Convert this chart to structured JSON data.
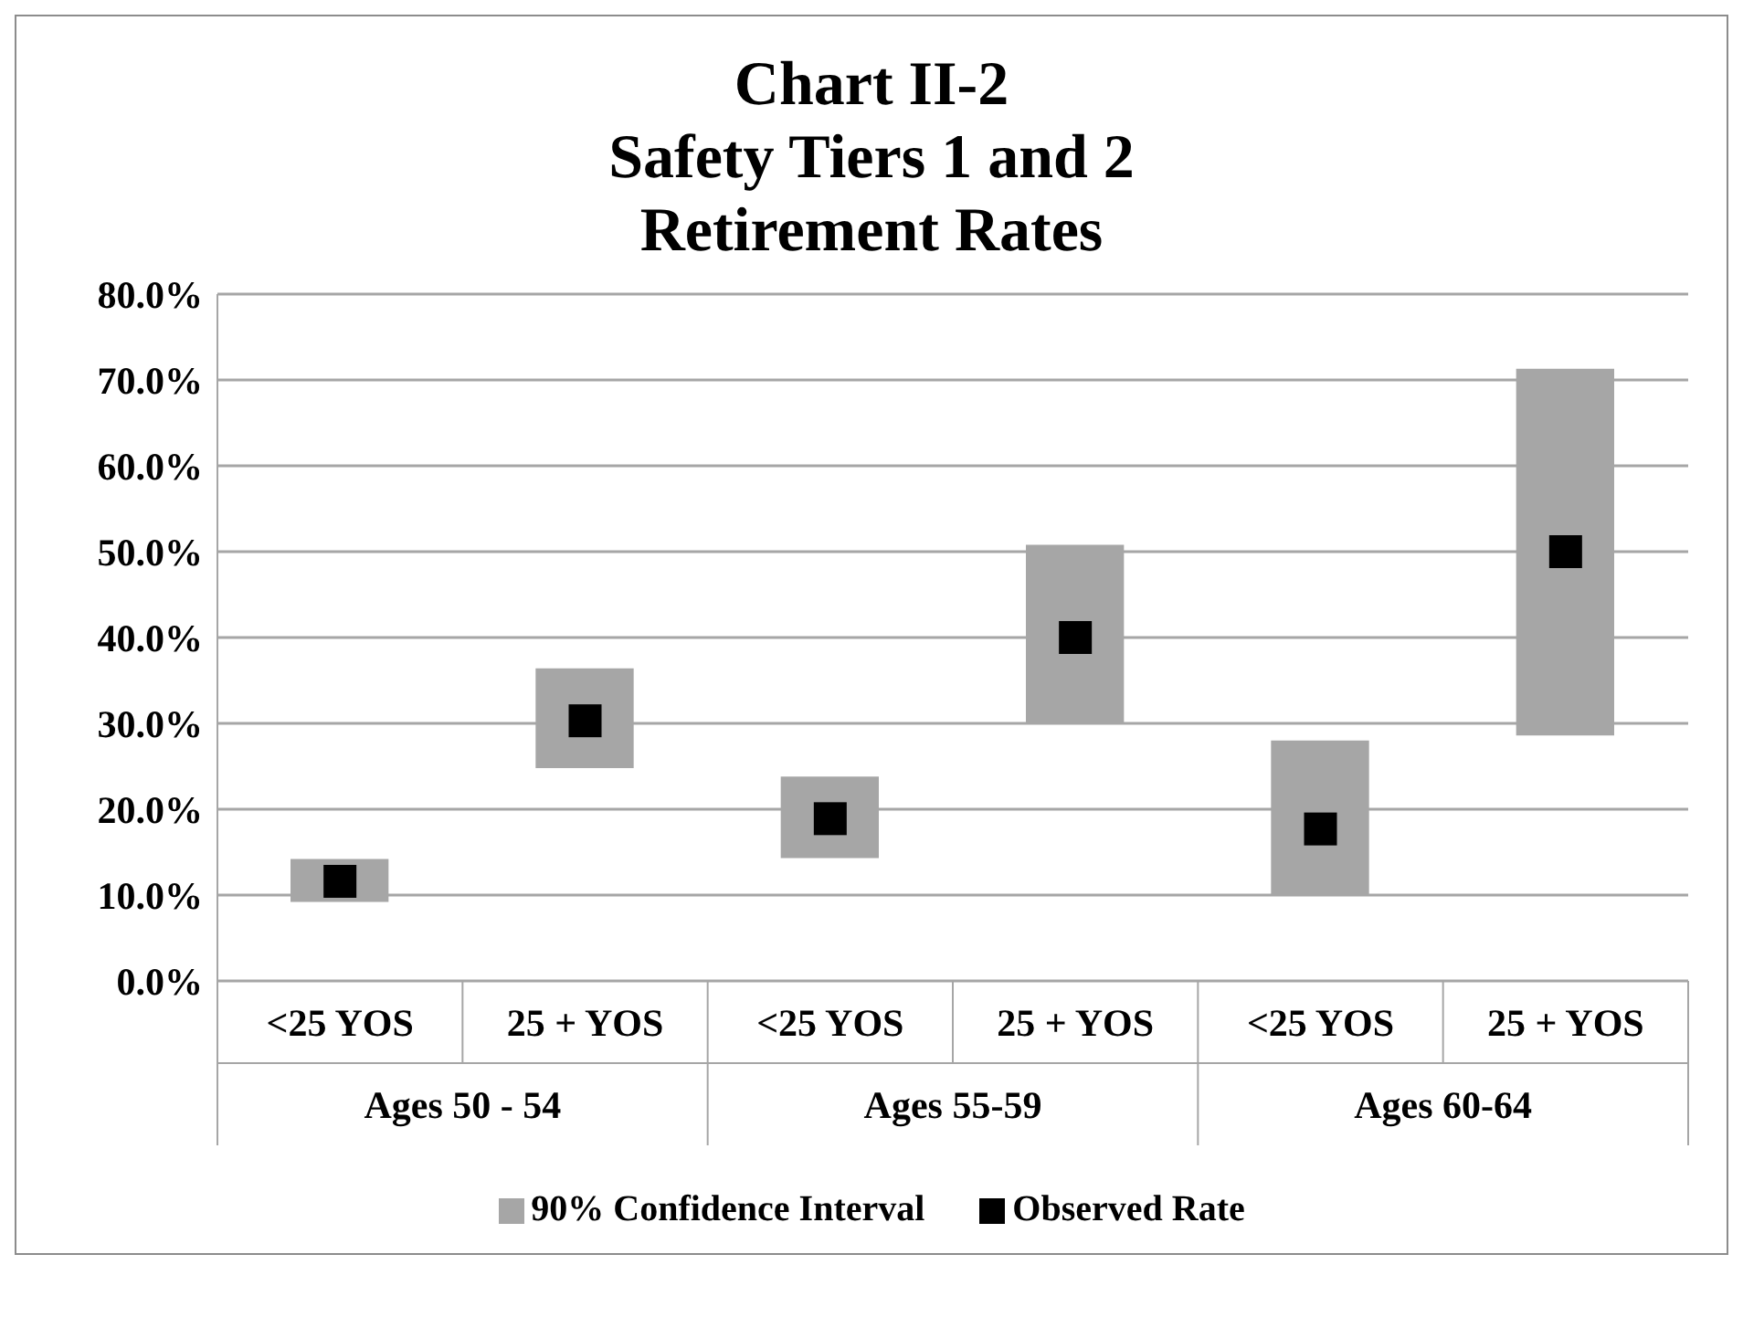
{
  "chart_data": {
    "type": "bar",
    "title": "Chart II-2\nSafety Tiers 1 and 2\nRetirement Rates",
    "categories": [
      "<25 YOS",
      "25 + YOS",
      "<25 YOS",
      "25 + YOS",
      "<25 YOS",
      "25 + YOS"
    ],
    "annotations": [
      "Ages 50 - 54",
      "Ages 55-59",
      "Ages 60-64"
    ],
    "series": [
      {
        "name": "90% Confidence Interval",
        "color": "#a6a6a6",
        "base": [
          9.2,
          24.8,
          14.3,
          29.9,
          10.0,
          28.6
        ],
        "values": [
          5.0,
          11.6,
          9.5,
          20.9,
          18.0,
          42.7
        ]
      },
      {
        "name": "Observed Rate",
        "type": "scatter",
        "color": "#000000",
        "marker": "square",
        "values": [
          11.6,
          30.3,
          18.9,
          40.0,
          17.7,
          50.0
        ]
      }
    ],
    "ylim": [
      0,
      80
    ],
    "yticks": [
      {
        "value": 0,
        "label": "0.0%"
      },
      {
        "value": 10,
        "label": "10.0%"
      },
      {
        "value": 20,
        "label": "20.0%"
      },
      {
        "value": 30,
        "label": "30.0%"
      },
      {
        "value": 40,
        "label": "40.0%"
      },
      {
        "value": 50,
        "label": "50.0%"
      },
      {
        "value": 60,
        "label": "60.0%"
      },
      {
        "value": 70,
        "label": "70.0%"
      },
      {
        "value": 80,
        "label": "80.0%"
      }
    ],
    "grid": "y",
    "legend": "bottom"
  }
}
